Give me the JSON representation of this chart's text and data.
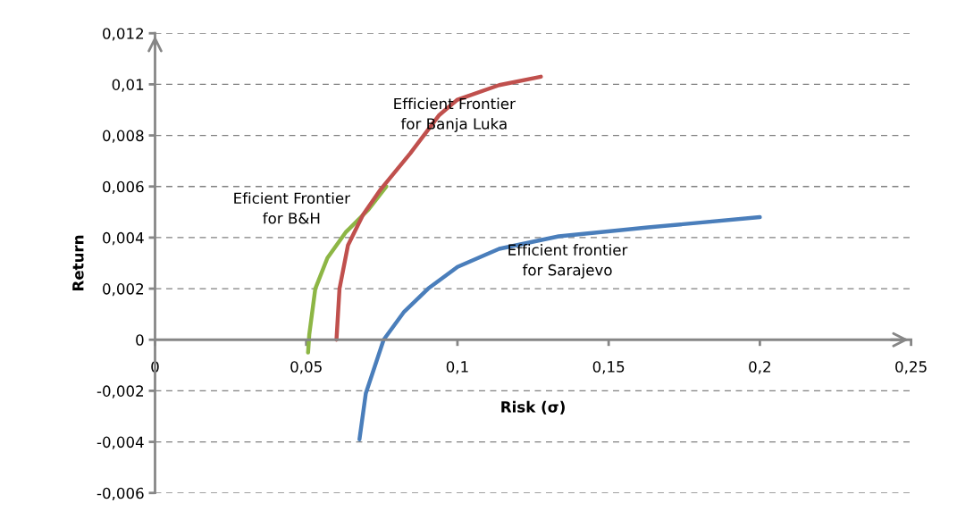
{
  "chart_data": {
    "type": "line",
    "xlabel": "Risk (σ)",
    "ylabel": "Return",
    "xlim": [
      0,
      0.25
    ],
    "ylim": [
      -0.006,
      0.012
    ],
    "xticks": [
      {
        "value": 0,
        "label": "0"
      },
      {
        "value": 0.05,
        "label": "0,05"
      },
      {
        "value": 0.1,
        "label": "0,1"
      },
      {
        "value": 0.15,
        "label": "0,15"
      },
      {
        "value": 0.2,
        "label": "0,2"
      },
      {
        "value": 0.25,
        "label": "0,25"
      }
    ],
    "yticks": [
      {
        "value": -0.006,
        "label": "-0,006"
      },
      {
        "value": -0.004,
        "label": "-0,004"
      },
      {
        "value": -0.002,
        "label": "-0,002"
      },
      {
        "value": 0,
        "label": "0"
      },
      {
        "value": 0.002,
        "label": "0,002"
      },
      {
        "value": 0.004,
        "label": "0,004"
      },
      {
        "value": 0.006,
        "label": "0,006"
      },
      {
        "value": 0.008,
        "label": "0,008"
      },
      {
        "value": 0.01,
        "label": "0,01"
      },
      {
        "value": 0.012,
        "label": "0,012"
      }
    ],
    "grid": "y",
    "legend": false,
    "marker": "none",
    "line_style": "solid",
    "series": [
      {
        "name": "Eficient Frontier\nfor B&H",
        "color": "#8db645",
        "x": [
          0.0506,
          0.051,
          0.053,
          0.057,
          0.063,
          0.0706,
          0.0765
        ],
        "values": [
          -0.0005,
          0.0002,
          0.002,
          0.0032,
          0.0042,
          0.0051,
          0.006
        ]
      },
      {
        "name": "Efficient Frontier\nfor Banja Luka",
        "color": "#c0504d",
        "x": [
          0.06,
          0.061,
          0.0638,
          0.0688,
          0.0747,
          0.0844,
          0.094,
          0.1,
          0.1138,
          0.1276
        ],
        "values": [
          0,
          0.002,
          0.0037,
          0.0049,
          0.0059,
          0.0073,
          0.0088,
          0.0094,
          0.00997,
          0.0103
        ]
      },
      {
        "name": "Efficient frontier\nfor Sarajevo",
        "color": "#4a7ebb",
        "x": [
          0.0676,
          0.0697,
          0.0756,
          0.0824,
          0.0903,
          0.1,
          0.1138,
          0.1335,
          0.163,
          0.2
        ],
        "values": [
          -0.0039,
          -0.0021,
          0,
          0.0011,
          0.002,
          0.00285,
          0.00356,
          0.00405,
          0.0044,
          0.0048
        ]
      }
    ]
  }
}
